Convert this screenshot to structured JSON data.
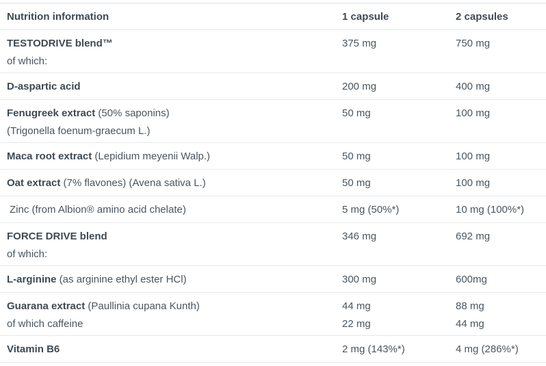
{
  "colors": {
    "text_bold": "#3e4a54",
    "text_regular": "#4a555e",
    "separator": "#e7e9eb",
    "top_border": "#dcdfe2",
    "background": "#ffffff"
  },
  "table": {
    "header": {
      "col1": "Nutrition information",
      "col2": "1 capsule",
      "col3": "2 capsules"
    },
    "rows": [
      {
        "label": "TESTODRIVE blend™",
        "label_line2": "of which:",
        "val1": [
          "375 mg"
        ],
        "val2": [
          "750 mg"
        ]
      },
      {
        "label": "D-aspartic acid",
        "val1": [
          "200 mg"
        ],
        "val2": [
          "400 mg"
        ]
      },
      {
        "label": "Fenugreek extract",
        "label_note": " (50% saponins)",
        "label_line2": "(Trigonella foenum-graecum L.)",
        "val1": [
          "50 mg"
        ],
        "val2": [
          "100 mg"
        ]
      },
      {
        "label": "Maca root extract",
        "label_note": " (Lepidium meyenii Walp.)",
        "val1": [
          "50 mg"
        ],
        "val2": [
          "100 mg"
        ]
      },
      {
        "label": "Oat extract",
        "label_note": " (7% flavones) (Avena sativa L.)",
        "val1": [
          "50 mg"
        ],
        "val2": [
          "100 mg"
        ]
      },
      {
        "label_note": "Zinc (from Albion® amino acid chelate)",
        "val1": [
          "5 mg (50%*)"
        ],
        "val2": [
          "10 mg (100%*)"
        ]
      },
      {
        "label": "FORCE DRIVE blend",
        "label_line2": "of which:",
        "val1": [
          "346 mg"
        ],
        "val2": [
          "692 mg"
        ]
      },
      {
        "label": "L-arginine",
        "label_note": " (as arginine ethyl ester HCl)",
        "val1": [
          "300 mg"
        ],
        "val2": [
          "600mg"
        ]
      },
      {
        "label": "Guarana extract",
        "label_note": " (Paullinia cupana Kunth)",
        "label_line2": "of which caffeine",
        "val1": [
          "44 mg",
          "22 mg"
        ],
        "val2": [
          "88 mg",
          "44 mg"
        ]
      },
      {
        "label": "Vitamin B6",
        "val1": [
          "2 mg (143%*)"
        ],
        "val2": [
          "4 mg (286%*)"
        ]
      }
    ]
  }
}
